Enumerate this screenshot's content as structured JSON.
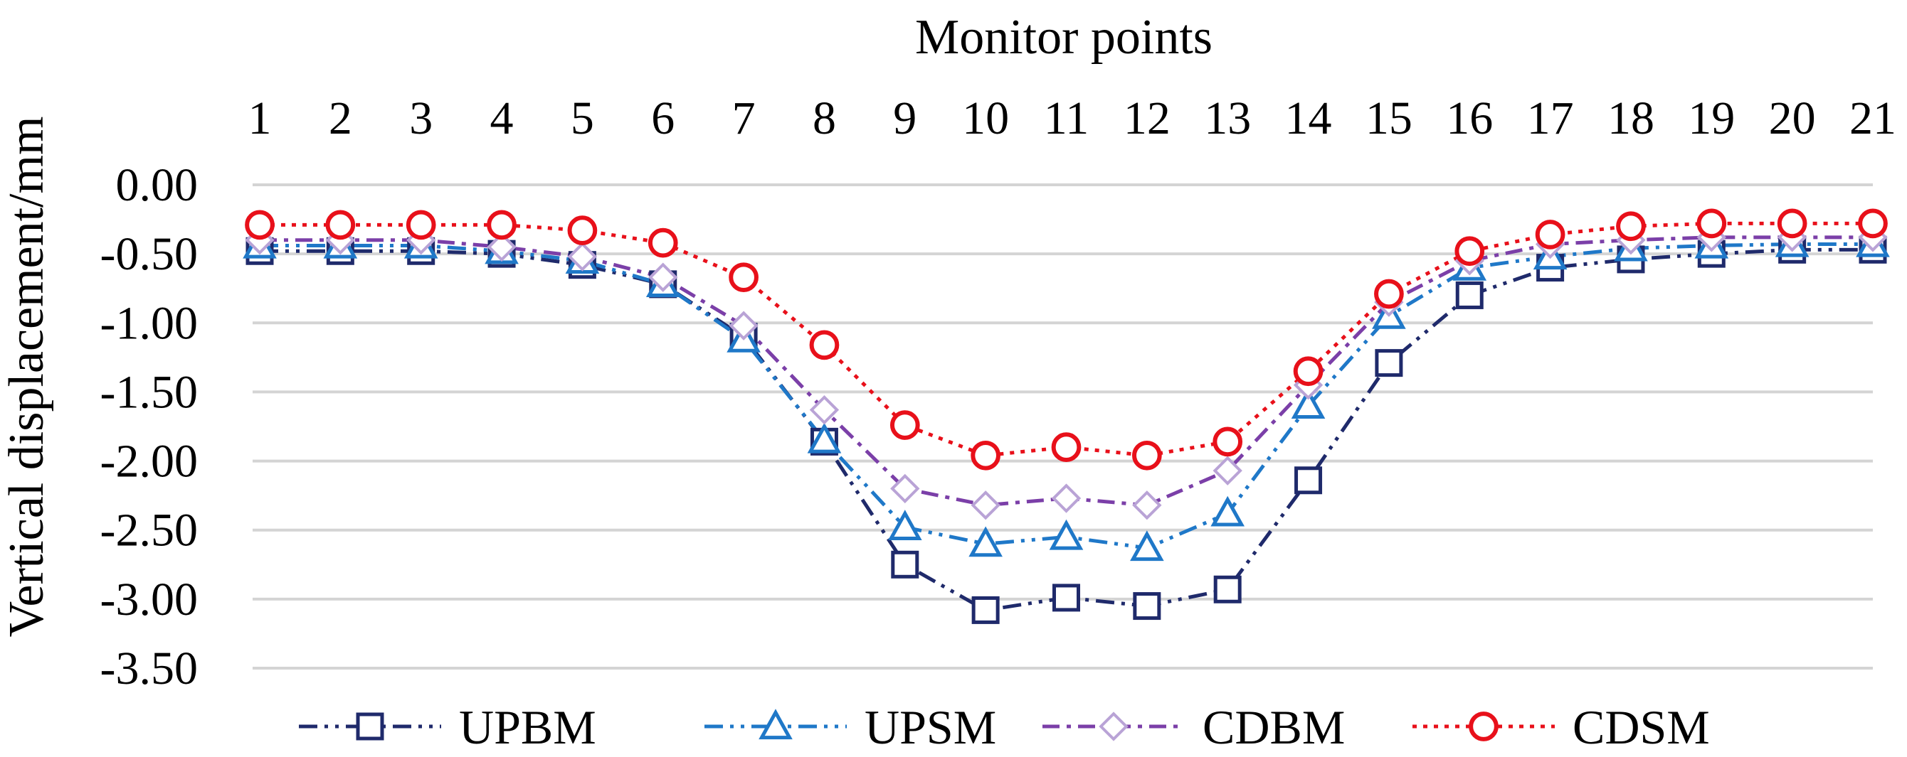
{
  "chart_data": {
    "type": "line",
    "title": "",
    "xlabel": "Monitor points",
    "ylabel": "Vertical  displacement/mm",
    "x_axis_position": "top",
    "categories": [
      "1",
      "2",
      "3",
      "4",
      "5",
      "6",
      "7",
      "8",
      "9",
      "10",
      "11",
      "12",
      "13",
      "14",
      "15",
      "16",
      "17",
      "18",
      "19",
      "20",
      "21"
    ],
    "ylim": [
      -3.5,
      0
    ],
    "yticks": [
      "0.00",
      "-0.50",
      "-1.00",
      "-1.50",
      "-2.00",
      "-2.50",
      "-3.00",
      "-3.50"
    ],
    "grid": true,
    "legend_position": "bottom",
    "series": [
      {
        "name": "UPBM",
        "color": "#1f2a6b",
        "marker": "square",
        "dash": "dash-dot-dot",
        "values": [
          -0.48,
          -0.48,
          -0.48,
          -0.5,
          -0.58,
          -0.72,
          -1.1,
          -1.86,
          -2.75,
          -3.08,
          -2.99,
          -3.05,
          -2.93,
          -2.14,
          -1.29,
          -0.8,
          -0.6,
          -0.54,
          -0.5,
          -0.47,
          -0.47
        ]
      },
      {
        "name": "UPSM",
        "color": "#1f78c8",
        "marker": "triangle",
        "dash": "dash-dot-dot",
        "values": [
          -0.44,
          -0.44,
          -0.44,
          -0.48,
          -0.55,
          -0.72,
          -1.12,
          -1.85,
          -2.48,
          -2.6,
          -2.55,
          -2.63,
          -2.38,
          -1.6,
          -0.95,
          -0.6,
          -0.52,
          -0.46,
          -0.44,
          -0.43,
          -0.43
        ]
      },
      {
        "name": "CDBM",
        "color": "#7b3fa8",
        "marker": "diamond",
        "dash": "dash-dot",
        "values": [
          -0.4,
          -0.4,
          -0.4,
          -0.45,
          -0.52,
          -0.67,
          -1.02,
          -1.63,
          -2.2,
          -2.32,
          -2.27,
          -2.32,
          -2.07,
          -1.45,
          -0.85,
          -0.55,
          -0.43,
          -0.4,
          -0.38,
          -0.38,
          -0.38
        ]
      },
      {
        "name": "CDSM",
        "color": "#e8101a",
        "marker": "circle",
        "dash": "dotted",
        "values": [
          -0.29,
          -0.29,
          -0.29,
          -0.29,
          -0.33,
          -0.42,
          -0.67,
          -1.16,
          -1.74,
          -1.96,
          -1.9,
          -1.96,
          -1.86,
          -1.35,
          -0.79,
          -0.48,
          -0.36,
          -0.3,
          -0.28,
          -0.28,
          -0.28
        ]
      }
    ]
  }
}
